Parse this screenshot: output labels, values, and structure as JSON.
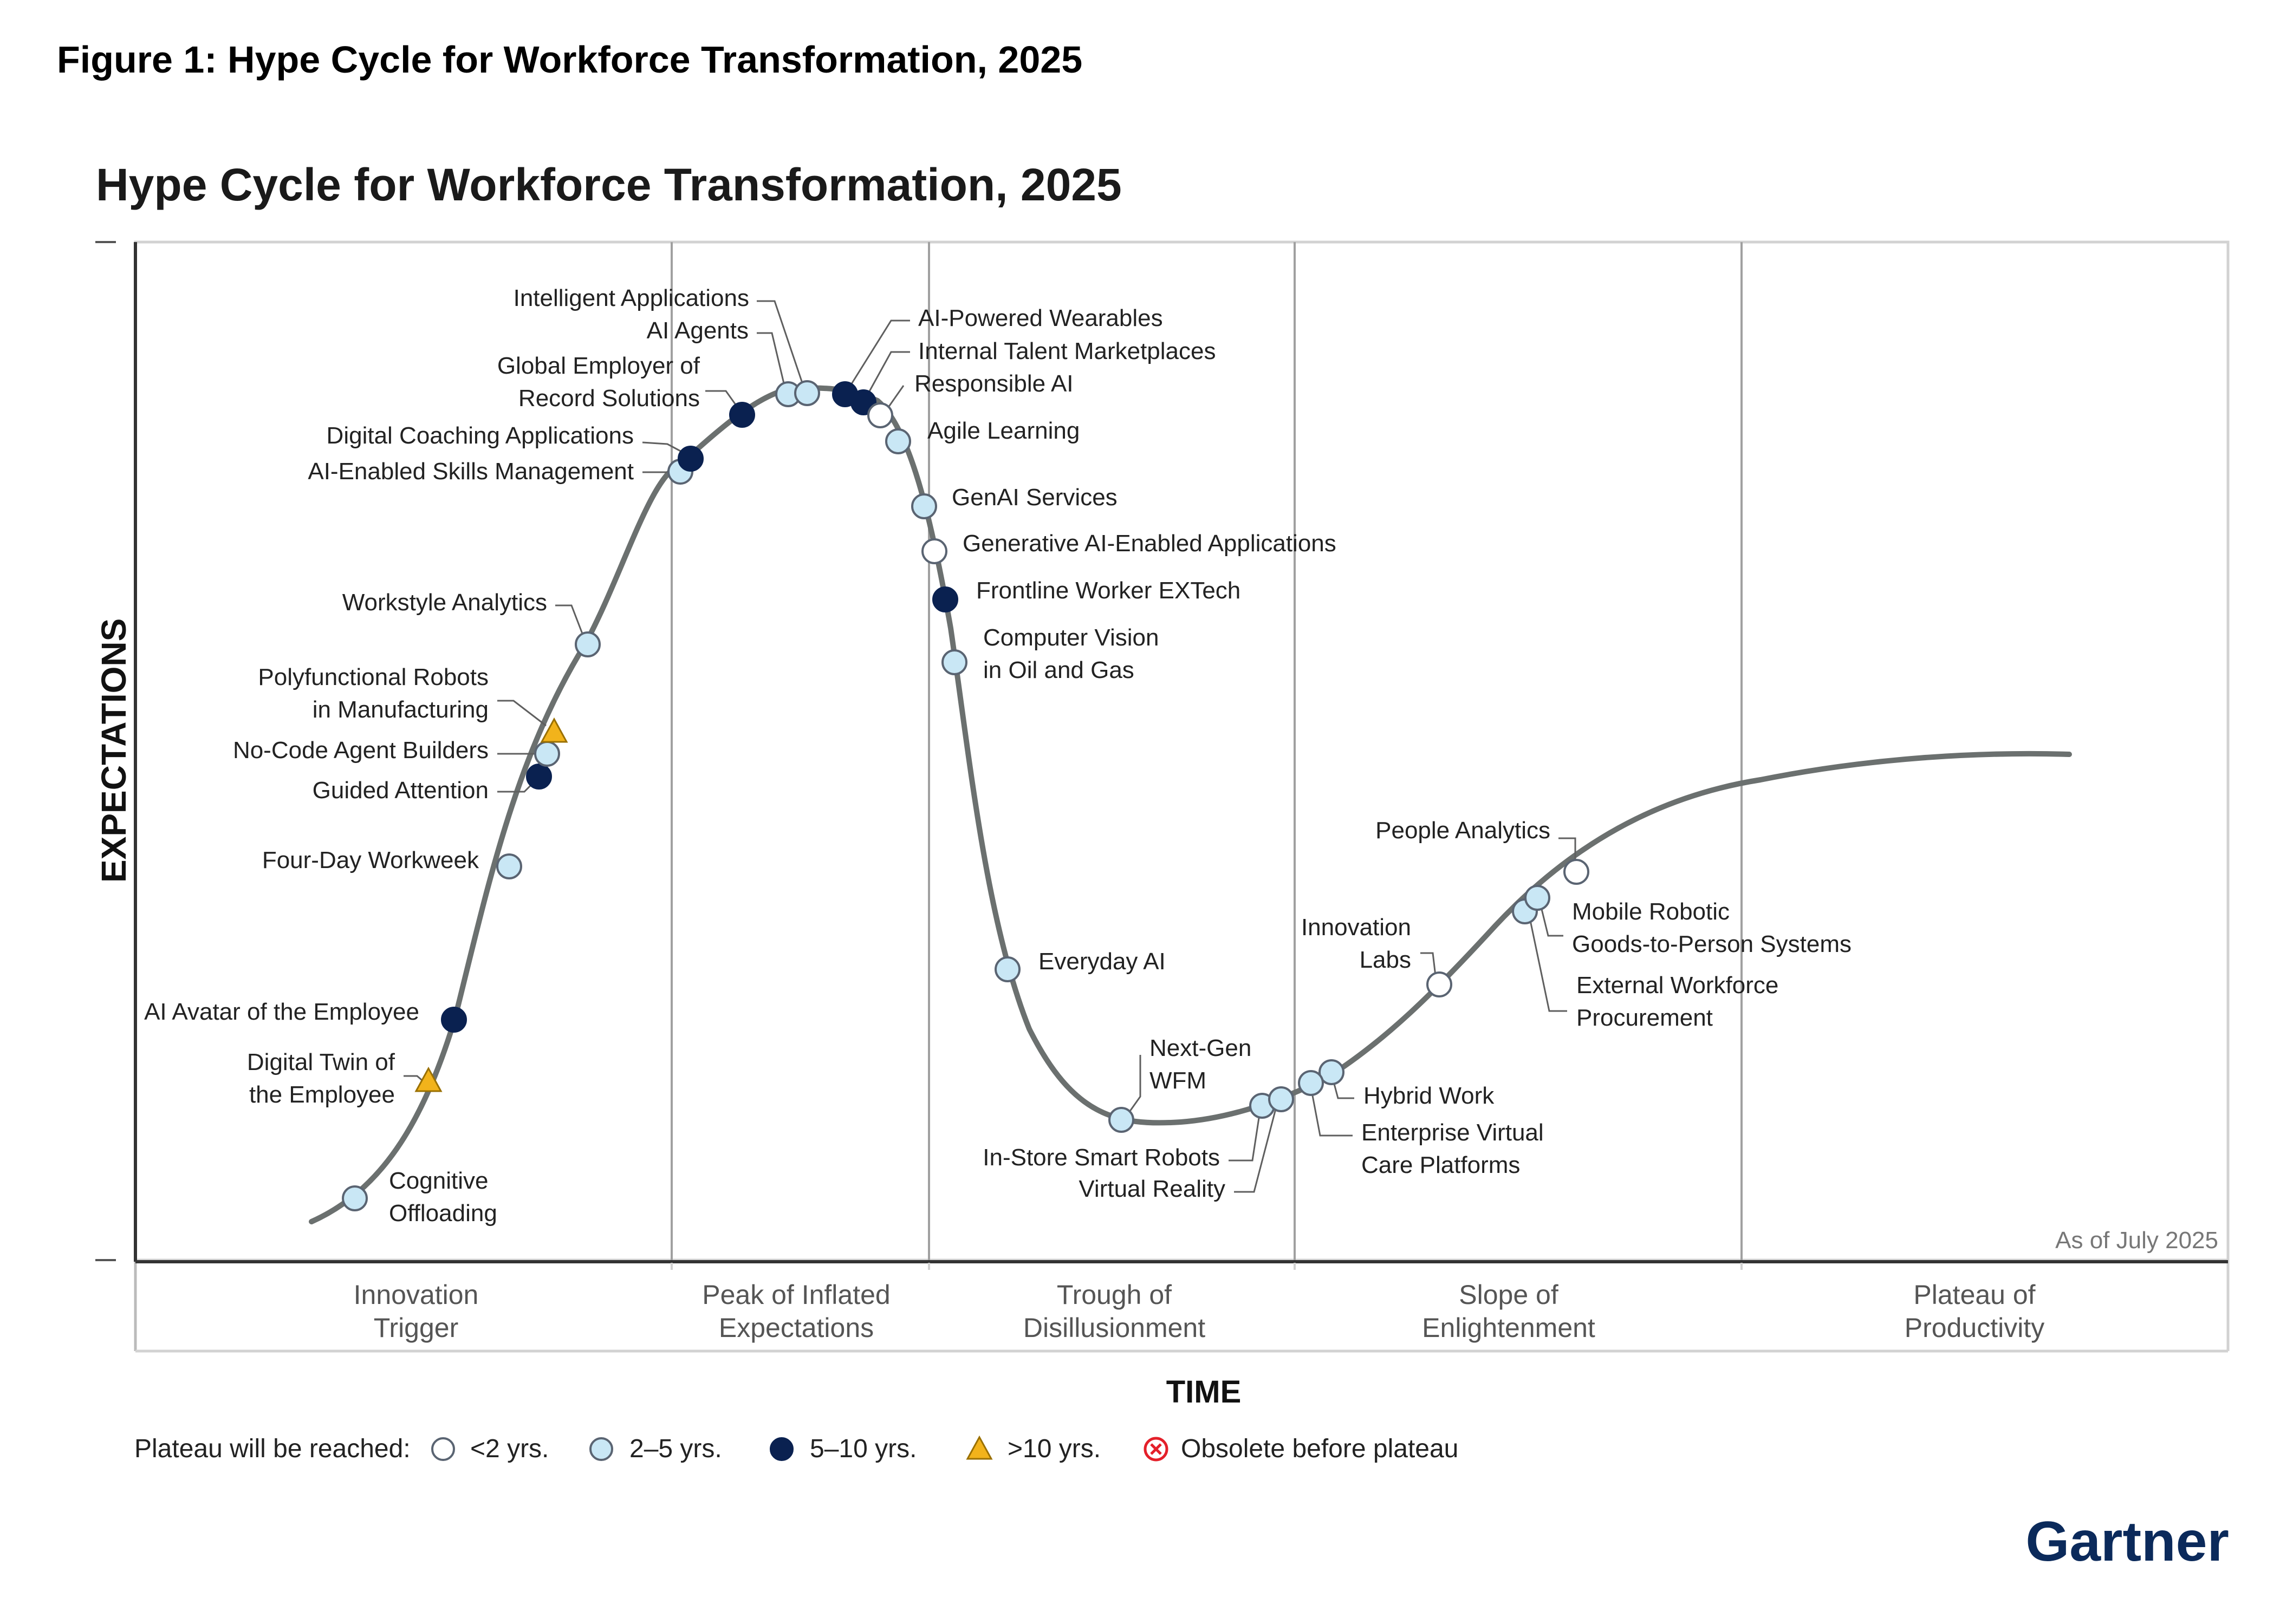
{
  "figure_caption": "Figure 1: Hype Cycle for Workforce Transformation, 2025",
  "chart": {
    "title": "Hype Cycle for Workforce Transformation, 2025",
    "y_axis_label": "EXPECTATIONS",
    "x_axis_label": "TIME",
    "as_of": "As of July 2025",
    "brand": "Gartner",
    "phases": [
      {
        "lines": [
          "Innovation",
          "Trigger"
        ]
      },
      {
        "lines": [
          "Peak of Inflated",
          "Expectations"
        ]
      },
      {
        "lines": [
          "Trough of",
          "Disillusionment"
        ]
      },
      {
        "lines": [
          "Slope of",
          "Enlightenment"
        ]
      },
      {
        "lines": [
          "Plateau of",
          "Productivity"
        ]
      }
    ],
    "legend": {
      "title": "Plateau will be reached:",
      "items": [
        {
          "key": "lt2",
          "label": "<2 yrs."
        },
        {
          "key": "2to5",
          "label": "2–5 yrs."
        },
        {
          "key": "5to10",
          "label": "5–10 yrs."
        },
        {
          "key": "gt10",
          "label": ">10 yrs."
        },
        {
          "key": "obsolete",
          "label": "Obsolete before plateau"
        }
      ]
    },
    "colors": {
      "lt2": "#ffffff",
      "2to5": "#c9e7f5",
      "5to10": "#0a2150",
      "gt10": "#f2b31b",
      "obsolete": "#e4202a",
      "curve": "#6b706f",
      "marker_stroke": "#5a6472",
      "phase_line": "#a0a0a0",
      "text": "#222222",
      "brand": "#0b2a5b"
    }
  },
  "chart_data": {
    "type": "hype-cycle",
    "title": "Hype Cycle for Workforce Transformation, 2025",
    "xlabel": "TIME",
    "ylabel": "EXPECTATIONS",
    "phases": [
      "Innovation Trigger",
      "Peak of Inflated Expectations",
      "Trough of Disillusionment",
      "Slope of Enlightenment",
      "Plateau of Productivity"
    ],
    "technologies": [
      {
        "name": "Cognitive Offloading",
        "lines": [
          "Cognitive",
          "Offloading"
        ],
        "phase": "Innovation Trigger",
        "plateau": "2to5"
      },
      {
        "name": "Digital Twin of the Employee",
        "lines": [
          "Digital Twin of",
          "the Employee"
        ],
        "phase": "Innovation Trigger",
        "plateau": "gt10"
      },
      {
        "name": "AI Avatar of the Employee",
        "lines": [
          "AI Avatar of the Employee"
        ],
        "phase": "Innovation Trigger",
        "plateau": "5to10"
      },
      {
        "name": "Four-Day Workweek",
        "lines": [
          "Four-Day Workweek"
        ],
        "phase": "Innovation Trigger",
        "plateau": "2to5"
      },
      {
        "name": "Guided Attention",
        "lines": [
          "Guided Attention"
        ],
        "phase": "Innovation Trigger",
        "plateau": "5to10"
      },
      {
        "name": "No-Code Agent Builders",
        "lines": [
          "No-Code Agent Builders"
        ],
        "phase": "Innovation Trigger",
        "plateau": "2to5"
      },
      {
        "name": "Polyfunctional Robots in Manufacturing",
        "lines": [
          "Polyfunctional Robots",
          "in Manufacturing"
        ],
        "phase": "Innovation Trigger",
        "plateau": "gt10"
      },
      {
        "name": "Workstyle Analytics",
        "lines": [
          "Workstyle Analytics"
        ],
        "phase": "Innovation Trigger",
        "plateau": "2to5"
      },
      {
        "name": "AI-Enabled Skills Management",
        "lines": [
          "AI-Enabled Skills Management"
        ],
        "phase": "Peak of Inflated Expectations",
        "plateau": "2to5"
      },
      {
        "name": "Digital Coaching Applications",
        "lines": [
          "Digital Coaching Applications"
        ],
        "phase": "Peak of Inflated Expectations",
        "plateau": "5to10"
      },
      {
        "name": "Global Employer of Record Solutions",
        "lines": [
          "Global Employer of",
          "Record Solutions"
        ],
        "phase": "Peak of Inflated Expectations",
        "plateau": "5to10"
      },
      {
        "name": "AI Agents",
        "lines": [
          "AI Agents"
        ],
        "phase": "Peak of Inflated Expectations",
        "plateau": "2to5"
      },
      {
        "name": "Intelligent Applications",
        "lines": [
          "Intelligent Applications"
        ],
        "phase": "Peak of Inflated Expectations",
        "plateau": "2to5"
      },
      {
        "name": "AI-Powered Wearables",
        "lines": [
          "AI-Powered Wearables"
        ],
        "phase": "Peak of Inflated Expectations",
        "plateau": "5to10"
      },
      {
        "name": "Internal Talent Marketplaces",
        "lines": [
          "Internal Talent Marketplaces"
        ],
        "phase": "Peak of Inflated Expectations",
        "plateau": "5to10"
      },
      {
        "name": "Responsible AI",
        "lines": [
          "Responsible AI"
        ],
        "phase": "Peak of Inflated Expectations",
        "plateau": "lt2"
      },
      {
        "name": "Agile Learning",
        "lines": [
          "Agile Learning"
        ],
        "phase": "Peak of Inflated Expectations",
        "plateau": "2to5"
      },
      {
        "name": "GenAI Services",
        "lines": [
          "GenAI Services"
        ],
        "phase": "Peak of Inflated Expectations",
        "plateau": "2to5"
      },
      {
        "name": "Generative AI-Enabled Applications",
        "lines": [
          "Generative AI-Enabled Applications"
        ],
        "phase": "Trough of Disillusionment",
        "plateau": "lt2"
      },
      {
        "name": "Frontline Worker EXTech",
        "lines": [
          "Frontline Worker EXTech"
        ],
        "phase": "Trough of Disillusionment",
        "plateau": "5to10"
      },
      {
        "name": "Computer Vision in Oil and Gas",
        "lines": [
          "Computer Vision",
          "in Oil and Gas"
        ],
        "phase": "Trough of Disillusionment",
        "plateau": "2to5"
      },
      {
        "name": "Everyday AI",
        "lines": [
          "Everyday AI"
        ],
        "phase": "Trough of Disillusionment",
        "plateau": "2to5"
      },
      {
        "name": "Next-Gen WFM",
        "lines": [
          "Next-Gen",
          "WFM"
        ],
        "phase": "Trough of Disillusionment",
        "plateau": "2to5"
      },
      {
        "name": "In-Store Smart Robots",
        "lines": [
          "In-Store Smart Robots"
        ],
        "phase": "Trough of Disillusionment",
        "plateau": "2to5"
      },
      {
        "name": "Virtual Reality",
        "lines": [
          "Virtual Reality"
        ],
        "phase": "Trough of Disillusionment",
        "plateau": "2to5"
      },
      {
        "name": "Hybrid Work",
        "lines": [
          "Hybrid Work"
        ],
        "phase": "Slope of Enlightenment",
        "plateau": "2to5"
      },
      {
        "name": "Enterprise Virtual Care Platforms",
        "lines": [
          "Enterprise Virtual",
          "Care Platforms"
        ],
        "phase": "Slope of Enlightenment",
        "plateau": "2to5"
      },
      {
        "name": "Innovation Labs",
        "lines": [
          "Innovation",
          "Labs"
        ],
        "phase": "Slope of Enlightenment",
        "plateau": "lt2"
      },
      {
        "name": "External Workforce Procurement",
        "lines": [
          "External Workforce",
          "Procurement"
        ],
        "phase": "Slope of Enlightenment",
        "plateau": "2to5"
      },
      {
        "name": "Mobile Robotic Goods-to-Person Systems",
        "lines": [
          "Mobile Robotic",
          "Goods-to-Person Systems"
        ],
        "phase": "Slope of Enlightenment",
        "plateau": "2to5"
      },
      {
        "name": "People Analytics",
        "lines": [
          "People Analytics"
        ],
        "phase": "Slope of Enlightenment",
        "plateau": "lt2"
      }
    ]
  }
}
